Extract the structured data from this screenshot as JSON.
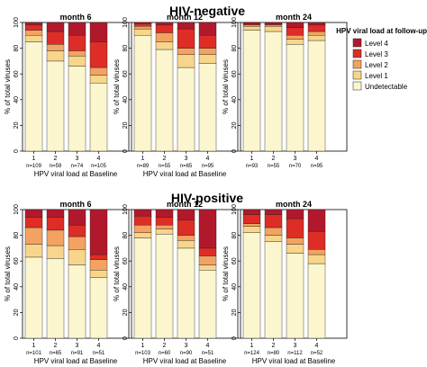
{
  "sections": [
    {
      "title": "HIV-negative"
    },
    {
      "title": "HIV-positive"
    }
  ],
  "legend": {
    "title": "HPV viral load at follow-up",
    "items": [
      {
        "label": "Level 4",
        "color": "#b2182b"
      },
      {
        "label": "Level 3",
        "color": "#de2d26"
      },
      {
        "label": "Level 2",
        "color": "#f4a261"
      },
      {
        "label": "Level 1",
        "color": "#f7d58b"
      },
      {
        "label": "Undetectable",
        "color": "#fcf6cf"
      }
    ]
  },
  "chart_data": [
    {
      "type": "bar",
      "stacked": true,
      "group": "HIV-negative",
      "title": "month 6",
      "categories": [
        "1",
        "2",
        "3",
        "4"
      ],
      "n_labels": [
        "n=109",
        "n=59",
        "n=74",
        "n=105"
      ],
      "xlabel": "HPV viral load at Baseline",
      "ylabel": "% of total viruses",
      "ylim": [
        0,
        100
      ],
      "yticks": [
        "0",
        "20",
        "40",
        "60",
        "80",
        "100"
      ],
      "series": [
        {
          "name": "Undetectable",
          "values": [
            85,
            70,
            66,
            53
          ]
        },
        {
          "name": "Level 1",
          "values": [
            5,
            8,
            8,
            6
          ]
        },
        {
          "name": "Level 2",
          "values": [
            4,
            5,
            4,
            6
          ]
        },
        {
          "name": "Level 3",
          "values": [
            4,
            10,
            12,
            20
          ]
        },
        {
          "name": "Level 4",
          "values": [
            2,
            7,
            10,
            15
          ]
        }
      ]
    },
    {
      "type": "bar",
      "stacked": true,
      "group": "HIV-negative",
      "title": "month 12",
      "categories": [
        "1",
        "2",
        "3",
        "4"
      ],
      "n_labels": [
        "n=89",
        "n=55",
        "n=65",
        "n=95"
      ],
      "xlabel": "HPV viral load at Baseline",
      "ylabel": "% of total viruses",
      "ylim": [
        0,
        100
      ],
      "yticks": [
        "0",
        "20",
        "40",
        "60",
        "80",
        "100"
      ],
      "series": [
        {
          "name": "Undetectable",
          "values": [
            90,
            79,
            65,
            68
          ]
        },
        {
          "name": "Level 1",
          "values": [
            5,
            6,
            10,
            7
          ]
        },
        {
          "name": "Level 2",
          "values": [
            2,
            7,
            5,
            5
          ]
        },
        {
          "name": "Level 3",
          "values": [
            2,
            6,
            15,
            10
          ]
        },
        {
          "name": "Level 4",
          "values": [
            1,
            2,
            5,
            10
          ]
        }
      ]
    },
    {
      "type": "bar",
      "stacked": true,
      "group": "HIV-negative",
      "title": "month 24",
      "categories": [
        "1",
        "2",
        "3",
        "4"
      ],
      "n_labels": [
        "n=93",
        "n=55",
        "n=70",
        "n=95"
      ],
      "xlabel": "",
      "ylabel": "% of total viruses",
      "ylim": [
        0,
        100
      ],
      "yticks": [
        "0",
        "20",
        "40",
        "60",
        "80",
        "100"
      ],
      "series": [
        {
          "name": "Undetectable",
          "values": [
            94,
            93,
            83,
            86
          ]
        },
        {
          "name": "Level 1",
          "values": [
            3,
            4,
            4,
            4
          ]
        },
        {
          "name": "Level 2",
          "values": [
            1,
            1,
            3,
            3
          ]
        },
        {
          "name": "Level 3",
          "values": [
            1,
            1,
            6,
            5
          ]
        },
        {
          "name": "Level 4",
          "values": [
            1,
            1,
            4,
            2
          ]
        }
      ]
    },
    {
      "type": "bar",
      "stacked": true,
      "group": "HIV-positive",
      "title": "month 6",
      "categories": [
        "1",
        "2",
        "3",
        "4"
      ],
      "n_labels": [
        "n=101",
        "n=65",
        "n=91",
        "n=51"
      ],
      "xlabel": "HPV viral load at Baseline",
      "ylabel": "% of total viruses",
      "ylim": [
        0,
        100
      ],
      "yticks": [
        "0",
        "20",
        "40",
        "60",
        "80",
        "100"
      ],
      "series": [
        {
          "name": "Undetectable",
          "values": [
            63,
            62,
            57,
            47
          ]
        },
        {
          "name": "Level 1",
          "values": [
            10,
            10,
            12,
            6
          ]
        },
        {
          "name": "Level 2",
          "values": [
            13,
            12,
            10,
            8
          ]
        },
        {
          "name": "Level 3",
          "values": [
            8,
            10,
            9,
            4
          ]
        },
        {
          "name": "Level 4",
          "values": [
            6,
            6,
            12,
            35
          ]
        }
      ]
    },
    {
      "type": "bar",
      "stacked": true,
      "group": "HIV-positive",
      "title": "month 12",
      "categories": [
        "1",
        "2",
        "3",
        "4"
      ],
      "n_labels": [
        "n=103",
        "n=60",
        "n=90",
        "n=51"
      ],
      "xlabel": "HPV viral load at Baseline",
      "ylabel": "% of total viruses",
      "ylim": [
        0,
        100
      ],
      "yticks": [
        "0",
        "20",
        "40",
        "60",
        "80",
        "100"
      ],
      "series": [
        {
          "name": "Undetectable",
          "values": [
            78,
            81,
            70,
            53
          ]
        },
        {
          "name": "Level 1",
          "values": [
            4,
            4,
            6,
            4
          ]
        },
        {
          "name": "Level 2",
          "values": [
            6,
            3,
            4,
            7
          ]
        },
        {
          "name": "Level 3",
          "values": [
            7,
            6,
            12,
            6
          ]
        },
        {
          "name": "Level 4",
          "values": [
            5,
            6,
            8,
            30
          ]
        }
      ]
    },
    {
      "type": "bar",
      "stacked": true,
      "group": "HIV-positive",
      "title": "month 24",
      "categories": [
        "1",
        "2",
        "3",
        "4"
      ],
      "n_labels": [
        "n=124",
        "n=80",
        "n=112",
        "n=52"
      ],
      "xlabel": "HPV viral load at Baseline",
      "ylabel": "% of total viruses",
      "ylim": [
        0,
        100
      ],
      "yticks": [
        "0",
        "20",
        "40",
        "60",
        "80",
        "100"
      ],
      "series": [
        {
          "name": "Undetectable",
          "values": [
            82,
            75,
            66,
            58
          ]
        },
        {
          "name": "Level 1",
          "values": [
            5,
            5,
            7,
            7
          ]
        },
        {
          "name": "Level 2",
          "values": [
            2,
            6,
            5,
            4
          ]
        },
        {
          "name": "Level 3",
          "values": [
            7,
            10,
            15,
            14
          ]
        },
        {
          "name": "Level 4",
          "values": [
            4,
            4,
            7,
            17
          ]
        }
      ]
    }
  ]
}
